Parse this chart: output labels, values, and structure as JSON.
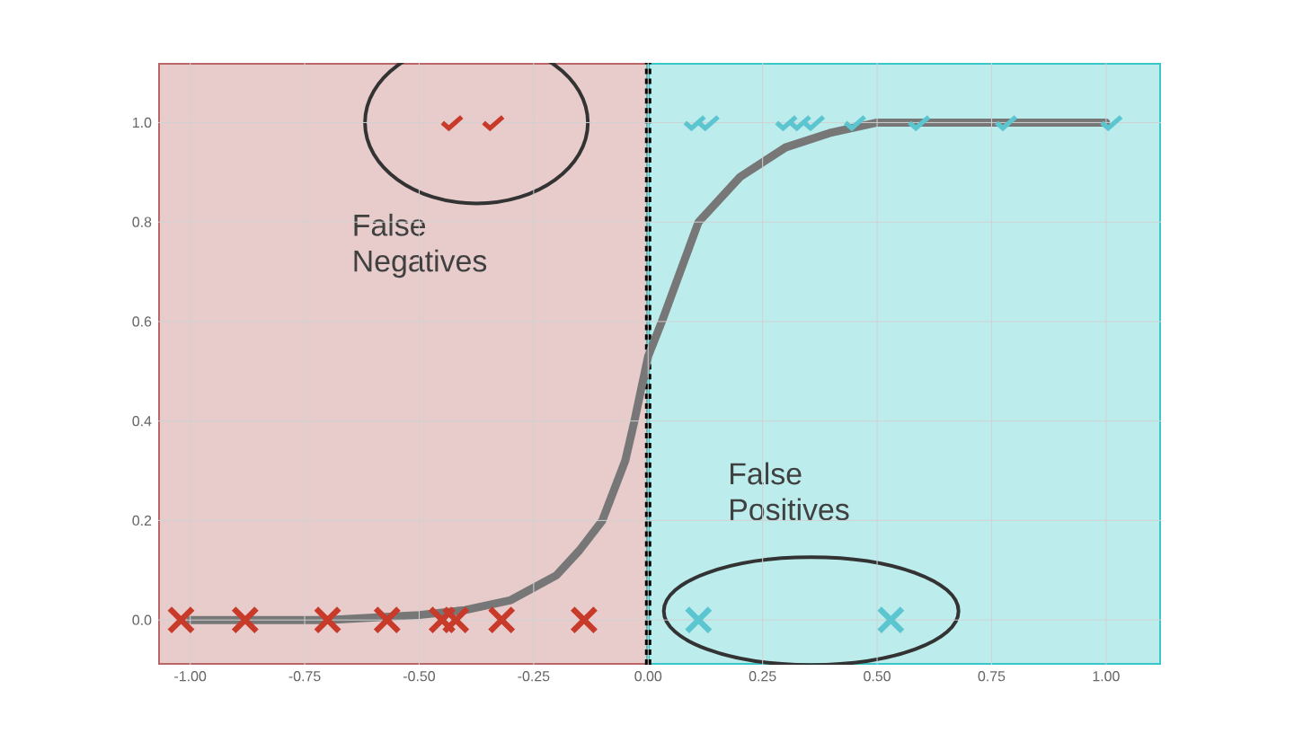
{
  "chart_data": {
    "type": "scatter",
    "xlim": [
      -1.07,
      1.12
    ],
    "ylim": [
      -0.09,
      1.12
    ],
    "xticks": [
      {
        "value": -1,
        "label": "-1.00"
      },
      {
        "value": -0.75,
        "label": "-0.75"
      },
      {
        "value": -0.5,
        "label": "-0.50"
      },
      {
        "value": -0.25,
        "label": "-0.25"
      },
      {
        "value": 0,
        "label": "0.00"
      },
      {
        "value": 0.25,
        "label": "0.25"
      },
      {
        "value": 0.5,
        "label": "0.50"
      },
      {
        "value": 0.75,
        "label": "0.75"
      },
      {
        "value": 1,
        "label": "1.00"
      }
    ],
    "yticks": [
      {
        "value": 0,
        "label": "0.0"
      },
      {
        "value": 0.2,
        "label": "0.2"
      },
      {
        "value": 0.4,
        "label": "0.4"
      },
      {
        "value": 0.6,
        "label": "0.6"
      },
      {
        "value": 0.8,
        "label": "0.8"
      },
      {
        "value": 1,
        "label": "1.0"
      }
    ],
    "grid": true,
    "series": [
      {
        "type": "line",
        "color": "#777777",
        "marker": "none",
        "x": [
          -1.0,
          -0.7,
          -0.5,
          -0.4,
          -0.3,
          -0.2,
          -0.15,
          -0.1,
          -0.05,
          -0.03,
          0,
          0.03,
          0.07,
          0.11,
          0.2,
          0.3,
          0.4,
          0.5,
          1.0
        ],
        "values": [
          0.0,
          0.0,
          0.01,
          0.02,
          0.04,
          0.09,
          0.14,
          0.2,
          0.32,
          0.4,
          0.53,
          0.6,
          0.7,
          0.8,
          0.89,
          0.95,
          0.98,
          1.0,
          1.0
        ]
      },
      {
        "color": "#c83a2a",
        "marker": "cross",
        "x": [
          -1.02,
          -0.88,
          -0.7,
          -0.57,
          -0.45,
          -0.42,
          -0.32,
          -0.14
        ],
        "values": [
          0,
          0,
          0,
          0,
          0,
          0,
          0,
          0
        ]
      },
      {
        "color": "#c83a2a",
        "x": [
          -0.43,
          -0.34
        ],
        "values": [
          1,
          1
        ]
      },
      {
        "color": "#5bc6cf",
        "marker": "cross",
        "x": [
          0.11,
          0.53
        ],
        "values": [
          0,
          0
        ]
      },
      {
        "color": "#5bc6cf",
        "x": [
          0.1,
          0.13,
          0.3,
          0.33,
          0.36,
          0.45,
          0.59,
          0.78,
          1.01
        ],
        "values": [
          1,
          1,
          1,
          1,
          1,
          1,
          1,
          1,
          1
        ]
      }
    ],
    "bands": [
      {
        "axis": "x",
        "from": -1.07,
        "to": 0,
        "color": "#e8cccc"
      },
      {
        "axis": "x",
        "from": 0,
        "to": 1.12,
        "color": "#bdeced"
      }
    ],
    "ref_lines": [
      {
        "axis": "x",
        "value": 0,
        "color": "#000000",
        "line_style": "dotted"
      }
    ],
    "annotations": [
      "False Negatives",
      "False Positives"
    ]
  }
}
